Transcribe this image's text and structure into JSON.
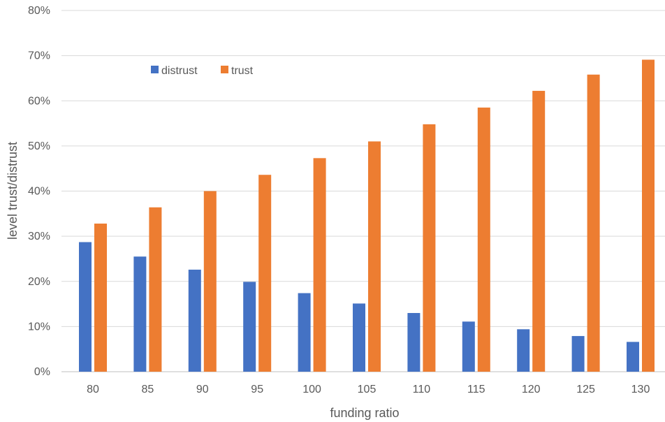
{
  "chart_data": {
    "type": "bar",
    "xlabel": "funding ratio",
    "ylabel": "level trust/distrust",
    "categories": [
      "80",
      "85",
      "90",
      "95",
      "100",
      "105",
      "110",
      "115",
      "120",
      "125",
      "130"
    ],
    "y_ticks": [
      "0%",
      "10%",
      "20%",
      "30%",
      "40%",
      "50%",
      "60%",
      "70%",
      "80%"
    ],
    "ylim": [
      0,
      80
    ],
    "grid": true,
    "legend_position": "top-left",
    "series": [
      {
        "name": "distrust",
        "color": "#4472C4",
        "values": [
          28.7,
          25.5,
          22.6,
          19.9,
          17.4,
          15.1,
          13.0,
          11.1,
          9.4,
          7.9,
          6.6
        ]
      },
      {
        "name": "trust",
        "color": "#ED7D31",
        "values": [
          32.8,
          36.4,
          40.0,
          43.6,
          47.3,
          51.0,
          54.8,
          58.5,
          62.2,
          65.8,
          69.1
        ]
      }
    ]
  }
}
